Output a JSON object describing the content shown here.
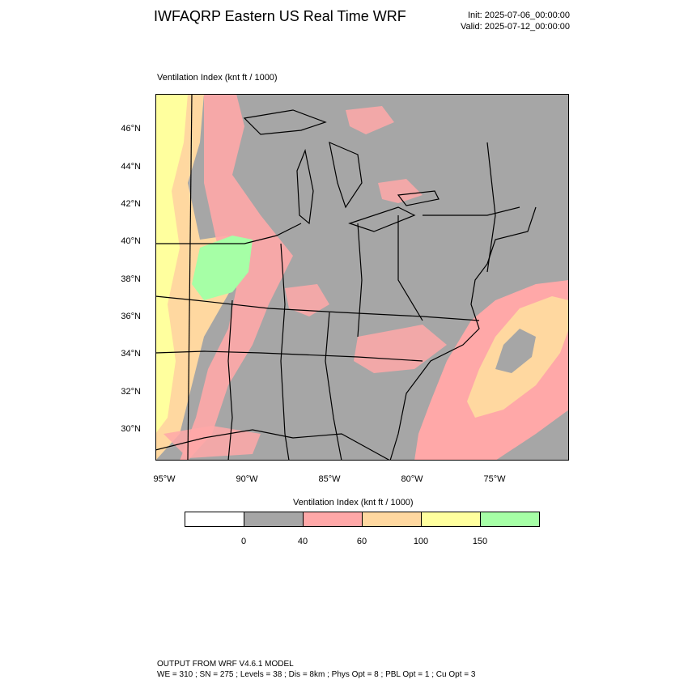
{
  "title": "IWFAQRP Eastern US Real Time WRF",
  "init": "Init: 2025-07-06_00:00:00",
  "valid": "Valid: 2025-07-12_00:00:00",
  "field_label": "Ventilation Index   (knt ft / 1000)",
  "colorbar": {
    "label": "Ventilation Index  (knt ft / 1000)",
    "colors": [
      "#ffffff",
      "#a6a6a6",
      "#ffa8a8",
      "#ffd8a0",
      "#ffff9e",
      "#a6ffa6"
    ],
    "ticks": [
      "0",
      "40",
      "60",
      "100",
      "150"
    ]
  },
  "lat_labels": [
    "46°N",
    "44°N",
    "42°N",
    "40°N",
    "38°N",
    "36°N",
    "34°N",
    "32°N",
    "30°N"
  ],
  "lon_labels": [
    "95°W",
    "90°W",
    "85°W",
    "80°W",
    "75°W"
  ],
  "footer_line1": "OUTPUT FROM WRF V4.6.1 MODEL",
  "footer_line2": "WE = 310 ; SN = 275 ; Levels = 38 ; Dis = 8km ; Phys Opt = 8 ; PBL Opt = 1 ; Cu Opt = 3",
  "colors": {
    "land_low": "#a6a6a6",
    "water": "#a6a6a6",
    "pink": "#ffa8a8",
    "orange": "#ffd8a0",
    "yellow": "#ffff9e",
    "green": "#a6ffa6"
  }
}
